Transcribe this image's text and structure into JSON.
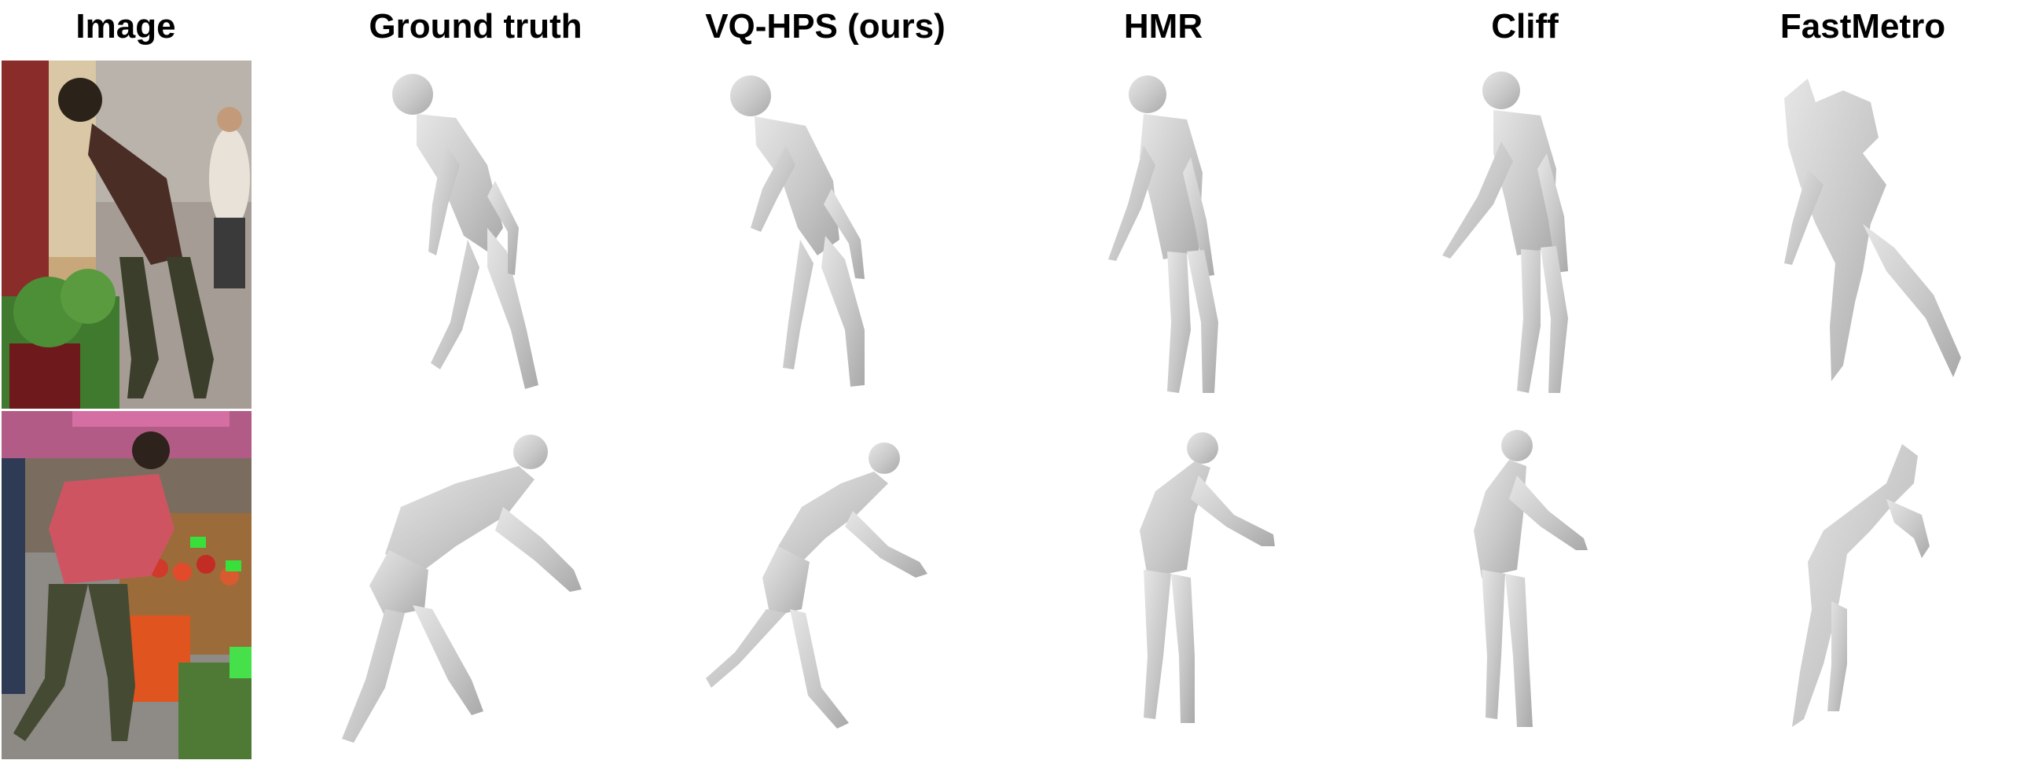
{
  "figure": {
    "columns": [
      {
        "label": "Image"
      },
      {
        "label": "Ground truth"
      },
      {
        "label": "VQ-HPS (ours)"
      },
      {
        "label": "HMR"
      },
      {
        "label": "Cliff"
      },
      {
        "label": "FastMetro"
      }
    ],
    "rows": [
      {
        "scene": "street shop window, man bending to look into display"
      },
      {
        "scene": "market stall, woman bending over fruit crates"
      }
    ],
    "colors": {
      "mesh": "#c8c8c8",
      "mesh_shadow": "#a9a9a9",
      "mesh_highlight": "#e6e6e6",
      "background": "#ffffff"
    }
  }
}
